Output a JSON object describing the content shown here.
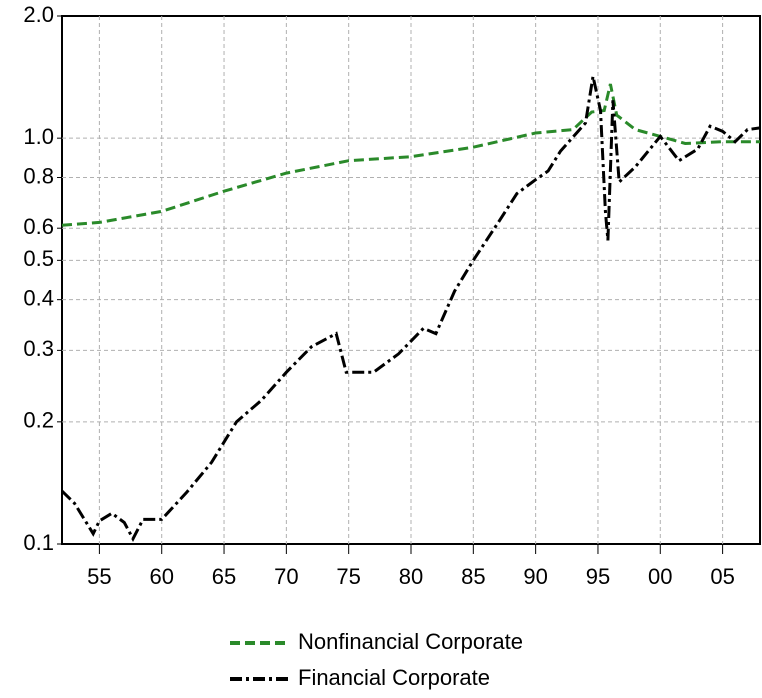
{
  "chart_data": {
    "type": "line",
    "log_y": true,
    "grid": true,
    "legend": "bottom",
    "xlim": [
      1952,
      2008
    ],
    "xticks": [
      {
        "value": 1955,
        "label": "55"
      },
      {
        "value": 1960,
        "label": "60"
      },
      {
        "value": 1965,
        "label": "65"
      },
      {
        "value": 1970,
        "label": "70"
      },
      {
        "value": 1975,
        "label": "75"
      },
      {
        "value": 1980,
        "label": "80"
      },
      {
        "value": 1985,
        "label": "85"
      },
      {
        "value": 1990,
        "label": "90"
      },
      {
        "value": 1995,
        "label": "95"
      },
      {
        "value": 2000,
        "label": "00"
      },
      {
        "value": 2005,
        "label": "05"
      }
    ],
    "ylim": [
      0.1,
      2
    ],
    "yticks": [
      0.1,
      0.2,
      0.3,
      0.4,
      0.5,
      0.6,
      0.8,
      {
        "value": 1,
        "label": "1.0"
      },
      {
        "value": 2,
        "label": "2.0"
      }
    ],
    "series": [
      {
        "name": "Nonfinancial Corporate",
        "color": "#2a8a2a",
        "dash": "10,5",
        "x": [
          1952,
          1955,
          1960,
          1965,
          1970,
          1975,
          1980,
          1985,
          1990,
          1993,
          1994.5,
          1995.5,
          1996,
          1996.5,
          1998,
          2000,
          2002,
          2005,
          2008
        ],
        "values": [
          0.61,
          0.62,
          0.66,
          0.74,
          0.82,
          0.88,
          0.9,
          0.95,
          1.03,
          1.05,
          1.16,
          1.17,
          1.36,
          1.14,
          1.05,
          1.01,
          0.97,
          0.98,
          0.98
        ]
      },
      {
        "name": "Financial Corporate",
        "color": "#000000",
        "dash": "12,4,3,4",
        "x": [
          1952,
          1953,
          1954.5,
          1955,
          1956,
          1957,
          1957.7,
          1958.5,
          1960,
          1962,
          1964,
          1966,
          1968,
          1970,
          1972,
          1974,
          1974.8,
          1977,
          1979,
          1981,
          1982,
          1983.5,
          1985,
          1987,
          1988.5,
          1990,
          1991,
          1992,
          1994,
          1994.6,
          1995.2,
          1995.6,
          1995.8,
          1996.2,
          1996.7,
          1998,
          2000,
          2001.5,
          2003,
          2004,
          2005,
          2006,
          2007,
          2008
        ],
        "values": [
          0.135,
          0.126,
          0.106,
          0.114,
          0.119,
          0.113,
          0.103,
          0.115,
          0.115,
          0.134,
          0.159,
          0.2,
          0.226,
          0.265,
          0.306,
          0.33,
          0.265,
          0.265,
          0.294,
          0.34,
          0.33,
          0.42,
          0.5,
          0.62,
          0.73,
          0.79,
          0.83,
          0.93,
          1.09,
          1.42,
          1.17,
          0.66,
          0.56,
          1.24,
          0.78,
          0.85,
          1.01,
          0.88,
          0.94,
          1.07,
          1.04,
          0.98,
          1.05,
          1.06
        ]
      }
    ]
  }
}
